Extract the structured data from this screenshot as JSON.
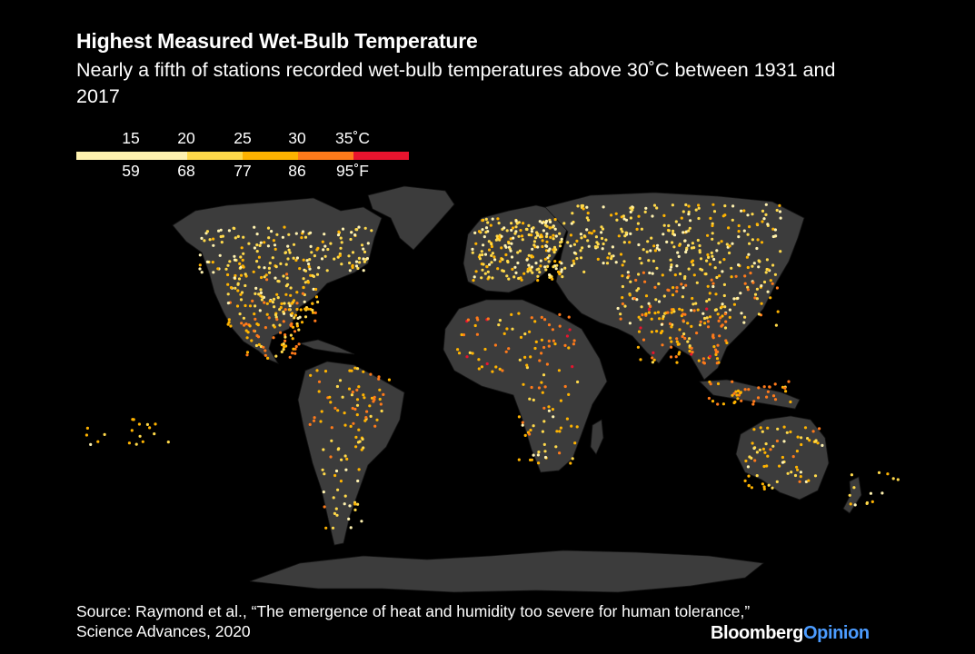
{
  "header": {
    "title": "Highest Measured Wet-Bulb Temperature",
    "subtitle": "Nearly a fifth of stations recorded wet-bulb temperatures above 30˚C between 1931 and 2017"
  },
  "legend": {
    "celsius_labels": [
      "15",
      "20",
      "25",
      "30",
      "35˚C"
    ],
    "fahrenheit_labels": [
      "59",
      "68",
      "77",
      "86",
      "95˚F"
    ],
    "color_steps": [
      "#fff2b0",
      "#ffd94a",
      "#ffb300",
      "#ff7a1a",
      "#e8142e"
    ]
  },
  "colors": {
    "background": "#000000",
    "land": "#3c3c3c",
    "brand_accent": "#4c9cff"
  },
  "footer": {
    "source": "Source: Raymond et al., “The emergence of heat and humidity too severe for human tolerance,” Science Advances, 2020",
    "brand_primary": "Bloomberg",
    "brand_secondary": "Opinion"
  }
}
